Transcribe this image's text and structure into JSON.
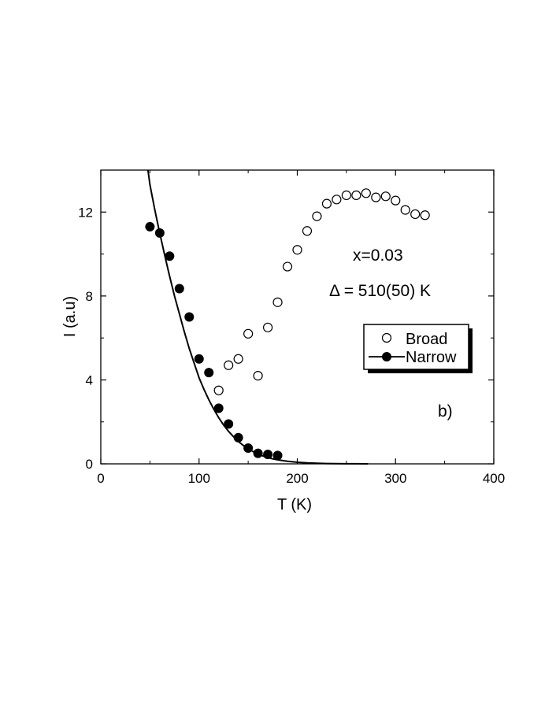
{
  "chart_data": {
    "type": "scatter",
    "xlabel": "T  (K)",
    "ylabel": "I (a.u)",
    "xlim": [
      0,
      400
    ],
    "ylim": [
      0,
      14
    ],
    "xticks": [
      0,
      100,
      200,
      300,
      400
    ],
    "yticks": [
      0,
      4,
      8,
      12
    ],
    "grid": false,
    "legend_position": "right",
    "annotations": [
      "x=0.03",
      "Δ = 510(50) K",
      "b)"
    ],
    "series": [
      {
        "name": "Broad",
        "marker": "open-circle",
        "x": [
          120,
          130,
          140,
          150,
          160,
          170,
          180,
          190,
          200,
          210,
          220,
          230,
          240,
          250,
          260,
          270,
          280,
          290,
          300,
          310,
          320,
          330
        ],
        "y": [
          3.5,
          4.7,
          5.0,
          6.2,
          4.2,
          6.5,
          7.7,
          9.4,
          10.2,
          11.1,
          11.8,
          12.4,
          12.6,
          12.8,
          12.8,
          12.9,
          12.7,
          12.75,
          12.55,
          12.1,
          11.9,
          11.85
        ]
      },
      {
        "name": "Narrow",
        "marker": "filled-circle",
        "line": "fit",
        "x": [
          50,
          60,
          70,
          80,
          90,
          100,
          110,
          120,
          130,
          140,
          150,
          160,
          170,
          180
        ],
        "y": [
          11.3,
          11.0,
          9.9,
          8.35,
          7.0,
          5.0,
          4.35,
          2.65,
          1.9,
          1.25,
          0.75,
          0.5,
          0.45,
          0.4
        ]
      }
    ],
    "fit_curve": {
      "x": [
        48,
        50,
        55,
        60,
        65,
        70,
        75,
        80,
        85,
        90,
        95,
        100,
        105,
        110,
        115,
        120,
        125,
        130,
        135,
        140,
        145,
        150,
        155,
        160,
        165,
        170,
        175,
        180,
        190,
        200,
        210,
        220,
        230,
        240,
        250,
        260,
        272
      ],
      "y": [
        14.0,
        13.3,
        12.1,
        11.0,
        9.95,
        8.95,
        8.0,
        7.15,
        6.3,
        5.5,
        4.8,
        4.1,
        3.55,
        3.05,
        2.6,
        2.2,
        1.85,
        1.55,
        1.3,
        1.07,
        0.88,
        0.72,
        0.58,
        0.47,
        0.38,
        0.3,
        0.24,
        0.19,
        0.12,
        0.075,
        0.045,
        0.027,
        0.016,
        0.009,
        0.005,
        0.003,
        0.0
      ]
    }
  }
}
